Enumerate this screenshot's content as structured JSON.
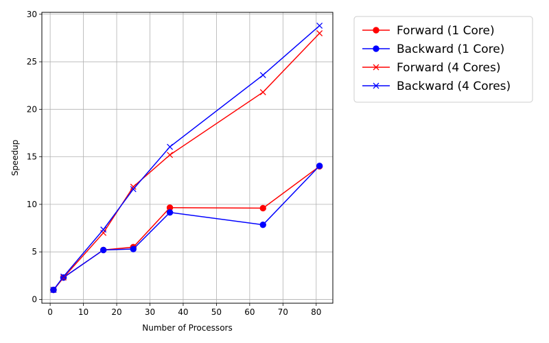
{
  "chart_data": {
    "type": "line",
    "title": "",
    "xlabel": "Number of Processors",
    "ylabel": "Speedup",
    "xlim": [
      -2.5,
      85
    ],
    "ylim": [
      -0.4,
      30.2
    ],
    "xticks": [
      0,
      10,
      20,
      30,
      40,
      50,
      60,
      70,
      80
    ],
    "yticks": [
      0,
      5,
      10,
      15,
      20,
      25,
      30
    ],
    "grid": true,
    "legend_position": "outside-right-top",
    "series": [
      {
        "name": "Forward (1 Core)",
        "color": "#ff0000",
        "marker": "circle",
        "x": [
          1,
          4,
          16,
          25,
          36,
          64,
          81
        ],
        "y": [
          1.0,
          2.3,
          5.2,
          5.5,
          9.65,
          9.6,
          14.0
        ]
      },
      {
        "name": "Backward (1 Core)",
        "color": "#0000ff",
        "marker": "circle",
        "x": [
          1,
          4,
          16,
          25,
          36,
          64,
          81
        ],
        "y": [
          1.0,
          2.3,
          5.2,
          5.3,
          9.15,
          7.85,
          14.05
        ]
      },
      {
        "name": "Forward (4 Cores)",
        "color": "#ff0000",
        "marker": "x",
        "x": [
          1,
          4,
          16,
          25,
          36,
          64,
          81
        ],
        "y": [
          1.0,
          2.3,
          7.0,
          11.85,
          15.2,
          21.8,
          28.0
        ]
      },
      {
        "name": "Backward (4 Cores)",
        "color": "#0000ff",
        "marker": "x",
        "x": [
          1,
          4,
          16,
          25,
          36,
          64,
          81
        ],
        "y": [
          1.0,
          2.4,
          7.35,
          11.6,
          16.05,
          23.6,
          28.8
        ]
      }
    ]
  }
}
